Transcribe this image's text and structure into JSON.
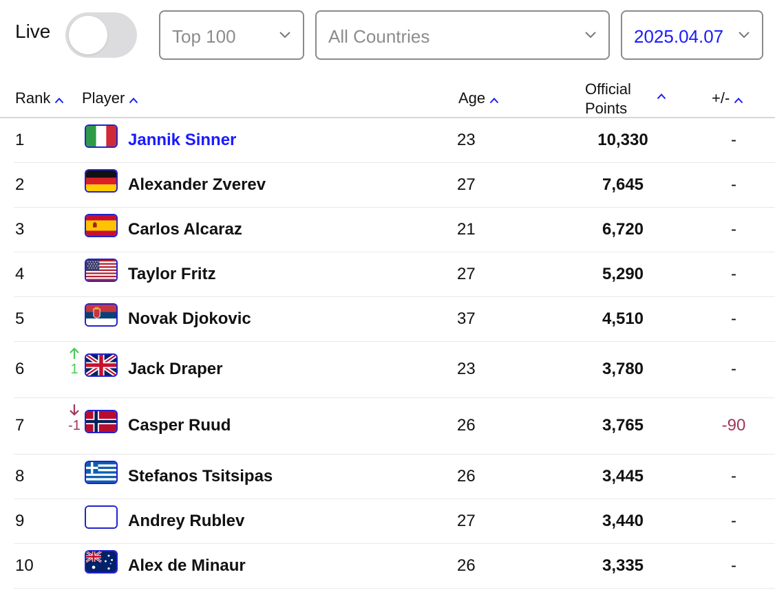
{
  "live": {
    "label": "Live",
    "enabled": false
  },
  "filters": {
    "range": {
      "value": "Top 100"
    },
    "country": {
      "value": "All Countries"
    },
    "date": {
      "value": "2025.04.07"
    }
  },
  "table": {
    "headers": {
      "rank": "Rank",
      "player": "Player",
      "age": "Age",
      "points_line1": "Official",
      "points_line2": "Points",
      "change": "+/-"
    },
    "rows": [
      {
        "rank": "1",
        "country": "ITA",
        "flag": "italy-flag",
        "player": "Jannik Sinner",
        "age": "23",
        "points": "10,330",
        "change": "-",
        "movement": "",
        "movement_dir": ""
      },
      {
        "rank": "2",
        "country": "GER",
        "flag": "germany-flag",
        "player": "Alexander Zverev",
        "age": "27",
        "points": "7,645",
        "change": "-",
        "movement": "",
        "movement_dir": ""
      },
      {
        "rank": "3",
        "country": "ESP",
        "flag": "spain-flag",
        "player": "Carlos Alcaraz",
        "age": "21",
        "points": "6,720",
        "change": "-",
        "movement": "",
        "movement_dir": ""
      },
      {
        "rank": "4",
        "country": "USA",
        "flag": "usa-flag",
        "player": "Taylor Fritz",
        "age": "27",
        "points": "5,290",
        "change": "-",
        "movement": "",
        "movement_dir": ""
      },
      {
        "rank": "5",
        "country": "SRB",
        "flag": "serbia-flag",
        "player": "Novak Djokovic",
        "age": "37",
        "points": "4,510",
        "change": "-",
        "movement": "",
        "movement_dir": ""
      },
      {
        "rank": "6",
        "country": "GBR",
        "flag": "uk-flag",
        "player": "Jack Draper",
        "age": "23",
        "points": "3,780",
        "change": "-",
        "movement": "1",
        "movement_dir": "up"
      },
      {
        "rank": "7",
        "country": "NOR",
        "flag": "norway-flag",
        "player": "Casper Ruud",
        "age": "26",
        "points": "3,765",
        "change": "-90",
        "movement": "-1",
        "movement_dir": "down"
      },
      {
        "rank": "8",
        "country": "GRE",
        "flag": "greece-flag",
        "player": "Stefanos Tsitsipas",
        "age": "26",
        "points": "3,445",
        "change": "-",
        "movement": "",
        "movement_dir": ""
      },
      {
        "rank": "9",
        "country": "",
        "flag": "blank-flag",
        "player": "Andrey Rublev",
        "age": "27",
        "points": "3,440",
        "change": "-",
        "movement": "",
        "movement_dir": ""
      },
      {
        "rank": "10",
        "country": "AUS",
        "flag": "australia-flag",
        "player": "Alex de Minaur",
        "age": "26",
        "points": "3,335",
        "change": "-",
        "movement": "",
        "movement_dir": ""
      }
    ]
  },
  "colors": {
    "accent": "#1a1aff",
    "rise": "#48cc58",
    "fall": "#a0365a"
  }
}
